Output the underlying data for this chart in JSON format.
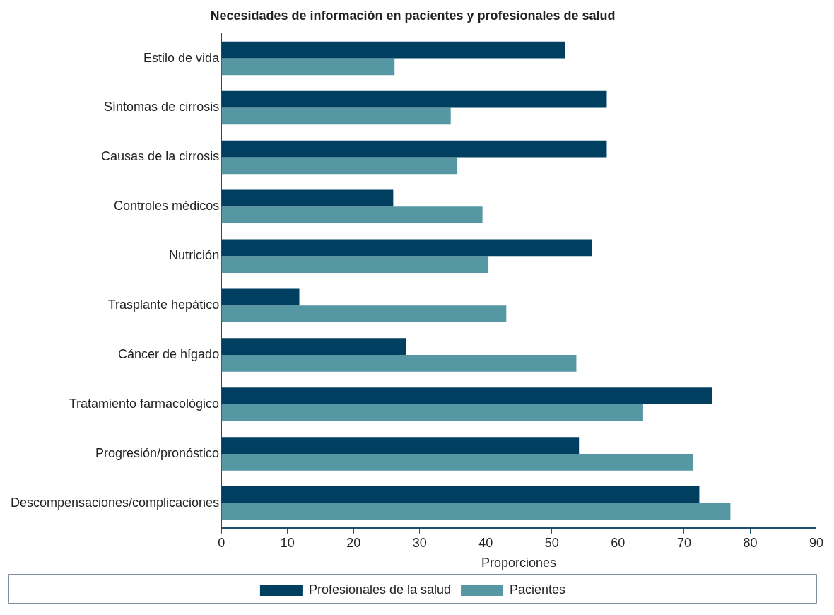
{
  "chart_data": {
    "type": "bar",
    "orientation": "horizontal",
    "title": "Necesidades de información en pacientes y profesionales de salud",
    "xlabel": "Proporciones",
    "categories": [
      "Estilo de vida",
      "Síntomas de cirrosis",
      "Causas de la cirrosis",
      "Controles médicos",
      "Nutrición",
      "Trasplante hepático",
      "Cáncer de hígado",
      "Tratamiento farmacológico",
      "Progresión/pronóstico",
      "Descompensaciones/complicaciones"
    ],
    "series": [
      {
        "name": "Profesionales de la salud",
        "color": "#003f5f",
        "values": [
          52,
          58.3,
          58.3,
          26,
          56.1,
          11.8,
          27.9,
          74.2,
          54.1,
          72.3
        ]
      },
      {
        "name": "Pacientes",
        "color": "#5597a3",
        "values": [
          26.2,
          34.7,
          35.7,
          39.5,
          40.4,
          43.1,
          53.7,
          63.8,
          71.4,
          77
        ]
      }
    ],
    "xlim": [
      0,
      90
    ],
    "xticks": [
      0,
      10,
      20,
      30,
      40,
      50,
      60,
      70,
      80,
      90
    ],
    "grid": false,
    "legend": "bottom"
  }
}
